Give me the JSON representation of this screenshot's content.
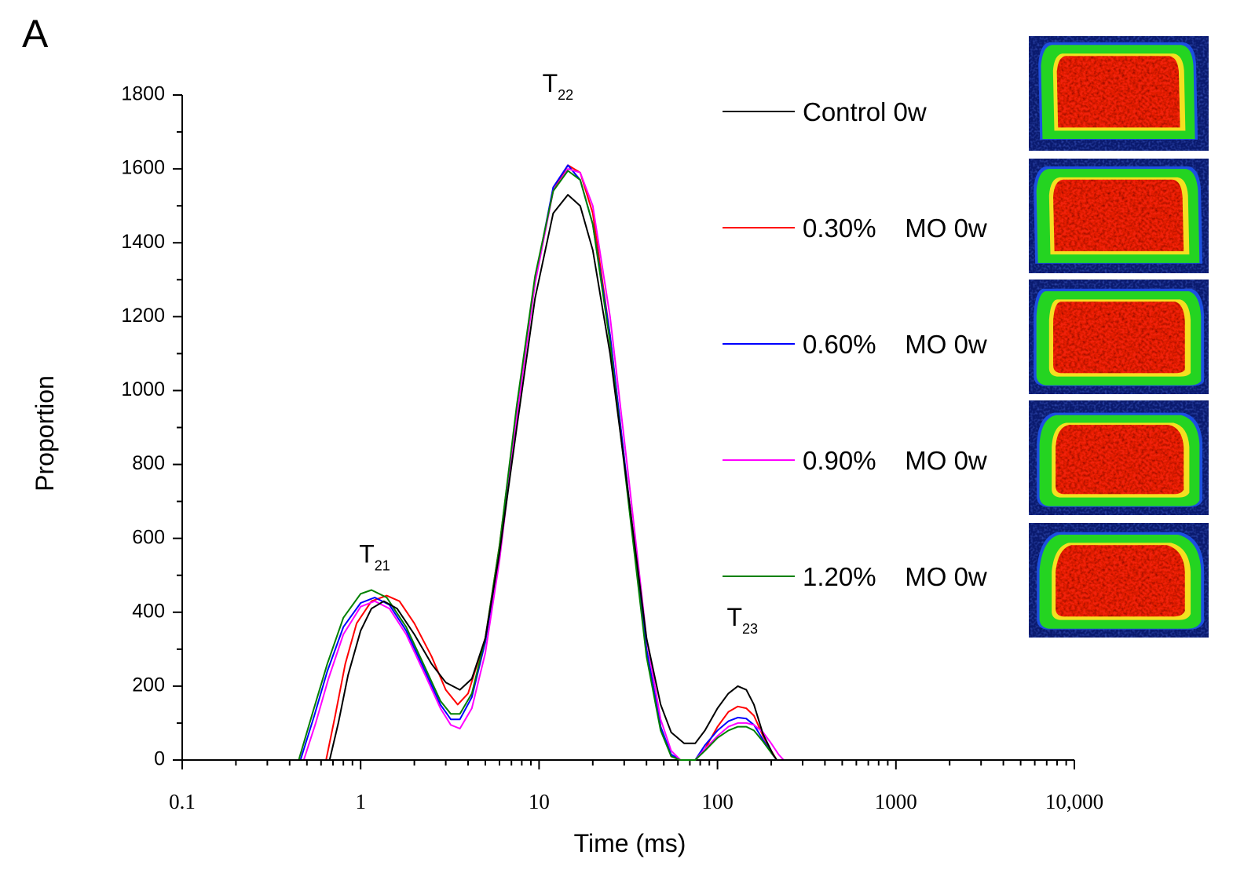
{
  "panel_label": "A",
  "chart_data": {
    "type": "line",
    "xscale": "log",
    "title": "",
    "xlabel": "Time (ms)",
    "ylabel": "Proportion",
    "xlim": [
      0.1,
      10000
    ],
    "ylim": [
      0,
      1800
    ],
    "yticks": [
      0,
      200,
      400,
      600,
      800,
      1000,
      1200,
      1400,
      1600,
      1800
    ],
    "xticks": [
      {
        "value": 0.1,
        "label": "0.1"
      },
      {
        "value": 1,
        "label": "1"
      },
      {
        "value": 10,
        "label": "10"
      },
      {
        "value": 100,
        "label": "100"
      },
      {
        "value": 1000,
        "label": "1000"
      },
      {
        "value": 10000,
        "label": "10,000"
      }
    ],
    "legend_position": "top-right",
    "annotations": [
      {
        "label": "T",
        "sub": "21",
        "x": 1.2,
        "y": 450
      },
      {
        "label": "T",
        "sub": "22",
        "x": 14,
        "y": 1660
      },
      {
        "label": "T",
        "sub": "23",
        "x": 130,
        "y": 215
      }
    ],
    "series": [
      {
        "name": "Control 0w",
        "color": "#000000",
        "points": [
          [
            0.1,
            0
          ],
          [
            0.67,
            0
          ],
          [
            0.75,
            100
          ],
          [
            0.85,
            230
          ],
          [
            1.0,
            350
          ],
          [
            1.15,
            410
          ],
          [
            1.35,
            430
          ],
          [
            1.6,
            410
          ],
          [
            2.0,
            340
          ],
          [
            2.5,
            260
          ],
          [
            3.0,
            210
          ],
          [
            3.6,
            190
          ],
          [
            4.2,
            220
          ],
          [
            5.0,
            330
          ],
          [
            6.0,
            560
          ],
          [
            7.5,
            900
          ],
          [
            9.5,
            1250
          ],
          [
            12,
            1480
          ],
          [
            14.5,
            1530
          ],
          [
            17,
            1500
          ],
          [
            20,
            1380
          ],
          [
            25,
            1100
          ],
          [
            32,
            700
          ],
          [
            40,
            330
          ],
          [
            48,
            150
          ],
          [
            55,
            75
          ],
          [
            65,
            45
          ],
          [
            75,
            45
          ],
          [
            85,
            80
          ],
          [
            100,
            140
          ],
          [
            115,
            180
          ],
          [
            130,
            200
          ],
          [
            145,
            190
          ],
          [
            160,
            150
          ],
          [
            180,
            70
          ],
          [
            205,
            15
          ],
          [
            215,
            0
          ],
          [
            10000,
            0
          ]
        ]
      },
      {
        "name": "0.30%    MO 0w",
        "color": "#ff0000",
        "points": [
          [
            0.1,
            0
          ],
          [
            0.64,
            0
          ],
          [
            0.72,
            120
          ],
          [
            0.82,
            260
          ],
          [
            0.95,
            370
          ],
          [
            1.15,
            430
          ],
          [
            1.4,
            445
          ],
          [
            1.65,
            430
          ],
          [
            2.0,
            370
          ],
          [
            2.5,
            280
          ],
          [
            3.0,
            190
          ],
          [
            3.5,
            150
          ],
          [
            4.0,
            180
          ],
          [
            5.0,
            330
          ],
          [
            6.0,
            580
          ],
          [
            7.5,
            950
          ],
          [
            9.5,
            1300
          ],
          [
            12,
            1540
          ],
          [
            14.5,
            1610
          ],
          [
            17,
            1590
          ],
          [
            20,
            1480
          ],
          [
            25,
            1150
          ],
          [
            32,
            700
          ],
          [
            40,
            300
          ],
          [
            48,
            90
          ],
          [
            55,
            10
          ],
          [
            62,
            0
          ],
          [
            75,
            0
          ],
          [
            85,
            30
          ],
          [
            100,
            90
          ],
          [
            115,
            130
          ],
          [
            130,
            145
          ],
          [
            145,
            140
          ],
          [
            160,
            120
          ],
          [
            180,
            65
          ],
          [
            200,
            25
          ],
          [
            215,
            0
          ],
          [
            10000,
            0
          ]
        ]
      },
      {
        "name": "0.60%    MO 0w",
        "color": "#0000ff",
        "points": [
          [
            0.1,
            0
          ],
          [
            0.46,
            0
          ],
          [
            0.55,
            120
          ],
          [
            0.65,
            240
          ],
          [
            0.8,
            360
          ],
          [
            1.0,
            425
          ],
          [
            1.2,
            440
          ],
          [
            1.45,
            420
          ],
          [
            1.8,
            350
          ],
          [
            2.3,
            240
          ],
          [
            2.8,
            150
          ],
          [
            3.2,
            110
          ],
          [
            3.6,
            110
          ],
          [
            4.2,
            170
          ],
          [
            5.0,
            320
          ],
          [
            6.0,
            560
          ],
          [
            7.5,
            950
          ],
          [
            9.5,
            1300
          ],
          [
            12,
            1550
          ],
          [
            14.5,
            1610
          ],
          [
            17,
            1570
          ],
          [
            20,
            1450
          ],
          [
            25,
            1150
          ],
          [
            32,
            700
          ],
          [
            40,
            300
          ],
          [
            48,
            90
          ],
          [
            55,
            15
          ],
          [
            62,
            0
          ],
          [
            75,
            0
          ],
          [
            85,
            40
          ],
          [
            100,
            80
          ],
          [
            115,
            105
          ],
          [
            130,
            115
          ],
          [
            145,
            112
          ],
          [
            160,
            95
          ],
          [
            180,
            55
          ],
          [
            200,
            20
          ],
          [
            215,
            0
          ],
          [
            10000,
            0
          ]
        ]
      },
      {
        "name": "0.90%    MO 0w",
        "color": "#ff00ff",
        "points": [
          [
            0.1,
            0
          ],
          [
            0.48,
            0
          ],
          [
            0.56,
            100
          ],
          [
            0.66,
            220
          ],
          [
            0.8,
            340
          ],
          [
            1.0,
            415
          ],
          [
            1.2,
            430
          ],
          [
            1.45,
            410
          ],
          [
            1.8,
            340
          ],
          [
            2.3,
            230
          ],
          [
            2.8,
            140
          ],
          [
            3.2,
            95
          ],
          [
            3.6,
            85
          ],
          [
            4.2,
            140
          ],
          [
            5.0,
            290
          ],
          [
            6.0,
            540
          ],
          [
            7.5,
            930
          ],
          [
            9.5,
            1290
          ],
          [
            12,
            1540
          ],
          [
            14.5,
            1600
          ],
          [
            17,
            1590
          ],
          [
            20,
            1500
          ],
          [
            25,
            1200
          ],
          [
            32,
            750
          ],
          [
            40,
            330
          ],
          [
            48,
            110
          ],
          [
            55,
            25
          ],
          [
            62,
            0
          ],
          [
            75,
            0
          ],
          [
            85,
            30
          ],
          [
            100,
            65
          ],
          [
            115,
            90
          ],
          [
            130,
            100
          ],
          [
            145,
            100
          ],
          [
            160,
            95
          ],
          [
            180,
            75
          ],
          [
            200,
            45
          ],
          [
            220,
            15
          ],
          [
            235,
            0
          ],
          [
            10000,
            0
          ]
        ]
      },
      {
        "name": "1.20%    MO 0w",
        "color": "#008000",
        "points": [
          [
            0.1,
            0
          ],
          [
            0.45,
            0
          ],
          [
            0.54,
            130
          ],
          [
            0.65,
            260
          ],
          [
            0.8,
            385
          ],
          [
            1.0,
            450
          ],
          [
            1.15,
            460
          ],
          [
            1.4,
            440
          ],
          [
            1.8,
            360
          ],
          [
            2.3,
            250
          ],
          [
            2.8,
            160
          ],
          [
            3.2,
            125
          ],
          [
            3.6,
            125
          ],
          [
            4.2,
            180
          ],
          [
            5.0,
            330
          ],
          [
            6.0,
            580
          ],
          [
            7.5,
            960
          ],
          [
            9.5,
            1310
          ],
          [
            12,
            1540
          ],
          [
            14.5,
            1595
          ],
          [
            17,
            1570
          ],
          [
            20,
            1450
          ],
          [
            25,
            1130
          ],
          [
            32,
            680
          ],
          [
            40,
            280
          ],
          [
            48,
            80
          ],
          [
            55,
            10
          ],
          [
            62,
            0
          ],
          [
            75,
            0
          ],
          [
            85,
            25
          ],
          [
            100,
            60
          ],
          [
            115,
            80
          ],
          [
            130,
            90
          ],
          [
            145,
            90
          ],
          [
            160,
            80
          ],
          [
            180,
            50
          ],
          [
            200,
            20
          ],
          [
            215,
            0
          ],
          [
            10000,
            0
          ]
        ]
      }
    ]
  },
  "mri_images": [
    {
      "name": "Control 0w",
      "variant": 0
    },
    {
      "name": "0.30% MO 0w",
      "variant": 1
    },
    {
      "name": "0.60% MO 0w",
      "variant": 2
    },
    {
      "name": "0.90% MO 0w",
      "variant": 3
    },
    {
      "name": "1.20% MO 0w",
      "variant": 4
    }
  ]
}
